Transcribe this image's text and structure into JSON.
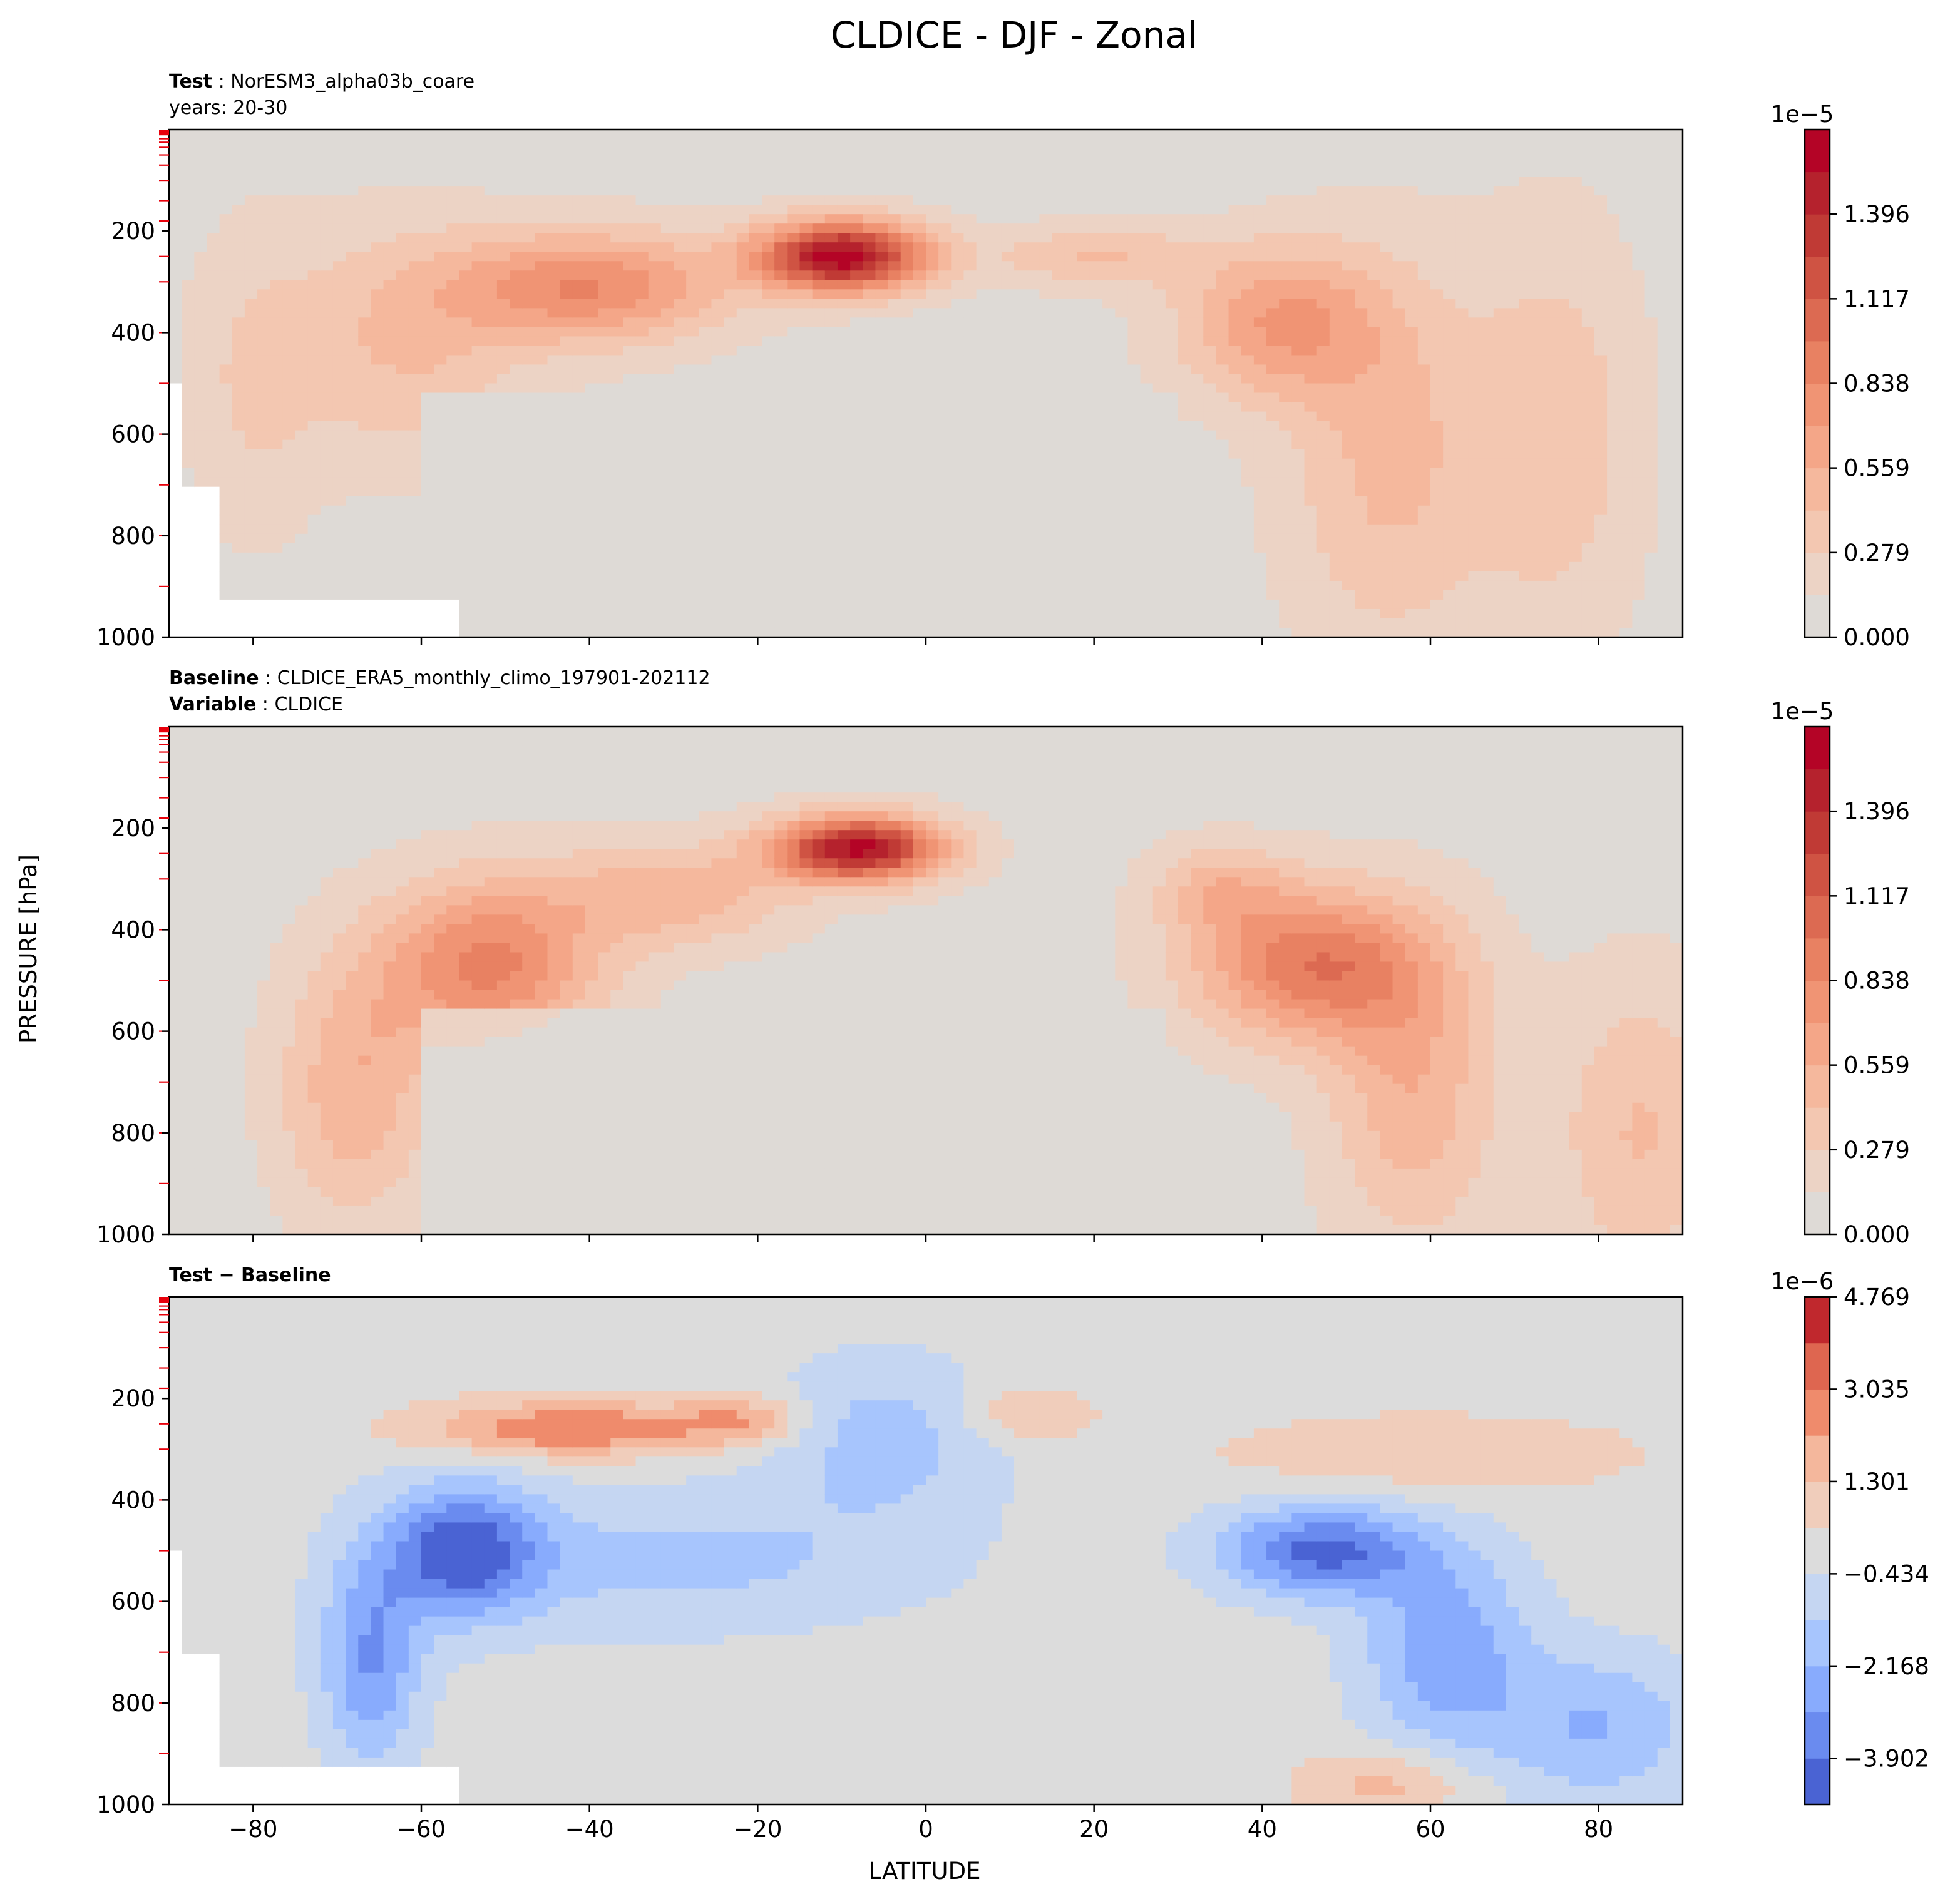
{
  "chart_data": {
    "type": "contour",
    "title": "CLDICE - DJF - Zonal",
    "xlabel": "LATITUDE",
    "ylabel": "PRESSURE [hPa]",
    "xlim": [
      -90,
      90
    ],
    "ylim": [
      1000,
      0
    ],
    "xticks": [
      "−80",
      "−60",
      "−40",
      "−20",
      "0",
      "20",
      "40",
      "60",
      "80"
    ],
    "yticks": [
      "200",
      "400",
      "600",
      "800",
      "1000"
    ],
    "panels": [
      {
        "header_lines": [
          {
            "bold": "Test",
            "sep": " : ",
            "text": "NorESM3_alpha03b_coare"
          },
          {
            "bold": "",
            "sep": "",
            "text": "years: 20-30"
          }
        ],
        "colorbar": {
          "exponent": "1e−5",
          "ticks": [
            "0.000",
            "0.279",
            "0.559",
            "0.838",
            "1.117",
            "1.396"
          ],
          "levels": 12,
          "colors": [
            "#dedad6",
            "#ecd3c5",
            "#f3c7b1",
            "#f5b89d",
            "#f4a688",
            "#f09474",
            "#e88162",
            "#dc6a52",
            "#cf5343",
            "#c03a35",
            "#b5222d",
            "#b40426"
          ]
        },
        "features": [
          {
            "name": "upper-tropical-max",
            "lat": -10,
            "p": 250,
            "value": 1.6
          },
          {
            "name": "sh-midlat-lobe",
            "lat": -40,
            "p": 310,
            "value": 0.8
          },
          {
            "name": "nh-midlat-lobe",
            "lat": 42,
            "p": 380,
            "value": 0.6
          }
        ]
      },
      {
        "header_lines": [
          {
            "bold": "Baseline",
            "sep": " : ",
            "text": "CLDICE_ERA5_monthly_climo_197901-202112"
          },
          {
            "bold": "Variable",
            "sep": " : ",
            "text": "CLDICE"
          }
        ],
        "colorbar": {
          "exponent": "1e−5",
          "ticks": [
            "0.000",
            "0.279",
            "0.559",
            "0.838",
            "1.117",
            "1.396"
          ],
          "levels": 12,
          "colors": [
            "#dedad6",
            "#ecd3c5",
            "#f3c7b1",
            "#f5b89d",
            "#f4a688",
            "#f09474",
            "#e88162",
            "#dc6a52",
            "#cf5343",
            "#c03a35",
            "#b5222d",
            "#b40426"
          ]
        },
        "features": [
          {
            "name": "upper-tropical-max",
            "lat": -8,
            "p": 240,
            "value": 1.55
          },
          {
            "name": "sh-midlat-lobe",
            "lat": -55,
            "p": 480,
            "value": 0.8
          },
          {
            "name": "nh-midlat-lobe",
            "lat": 45,
            "p": 470,
            "value": 0.9
          }
        ]
      },
      {
        "header_lines": [
          {
            "bold": "Test − Baseline",
            "sep": "",
            "text": ""
          }
        ],
        "colorbar": {
          "exponent": "1e−6",
          "ticks": [
            "4.769",
            "3.035",
            "1.301",
            "−0.434",
            "−2.168",
            "−3.902"
          ],
          "levels": 11,
          "colors": [
            "#c0282d",
            "#de6650",
            "#ef8b6c",
            "#f4b79c",
            "#f0cdbb",
            "#dcdcdc",
            "#c5d6f2",
            "#a7c5fd",
            "#88abfd",
            "#6a8bef",
            "#4a63d3"
          ]
        },
        "features": [
          {
            "name": "sh-upper-positive",
            "lat": -42,
            "p": 260,
            "value": 3.5
          },
          {
            "name": "sh-lower-negative",
            "lat": -55,
            "p": 500,
            "value": -4.5
          },
          {
            "name": "nh-lower-negative",
            "lat": 45,
            "p": 500,
            "value": -4.5
          }
        ]
      }
    ]
  }
}
